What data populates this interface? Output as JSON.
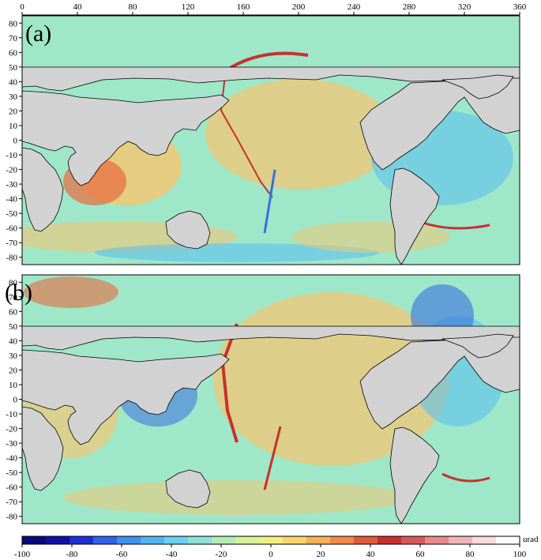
{
  "figure": {
    "top_axis_labels": [
      "0",
      "40",
      "80",
      "120",
      "160",
      "200",
      "240",
      "280",
      "320",
      "360"
    ],
    "lat_labels": [
      "80",
      "70",
      "60",
      "50",
      "40",
      "30",
      "20",
      "10",
      "0",
      "-10",
      "-20",
      "-30",
      "-40",
      "-50",
      "-60",
      "-70",
      "-80"
    ],
    "panels": [
      {
        "label": "(a)"
      },
      {
        "label": "(b)"
      }
    ],
    "colorbar": {
      "tick_labels": [
        "-100",
        "-80",
        "-60",
        "-40",
        "-20",
        "0",
        "20",
        "40",
        "60",
        "80",
        "100"
      ],
      "unit": "urad",
      "colors": [
        "#0a0a7a",
        "#1010a8",
        "#1f2fd6",
        "#2f62e8",
        "#3f8fef",
        "#52b3f2",
        "#6fcff0",
        "#8fe0d8",
        "#b2ecb8",
        "#d6f29a",
        "#f2ee84",
        "#f8d56c",
        "#f6b05a",
        "#f08a48",
        "#e45a3a",
        "#c8302e",
        "#d8585a",
        "#e6898c",
        "#f0b4b8",
        "#f8dcde",
        "#ffffff"
      ]
    },
    "map_colors": {
      "ocean": "#9ee7c9",
      "land": "#d2d2d2",
      "coast": "#000000",
      "warm": "#f2c773",
      "hot": "#e86a3e",
      "cool": "#5ec2ee",
      "cold": "#3a6fe0"
    }
  }
}
